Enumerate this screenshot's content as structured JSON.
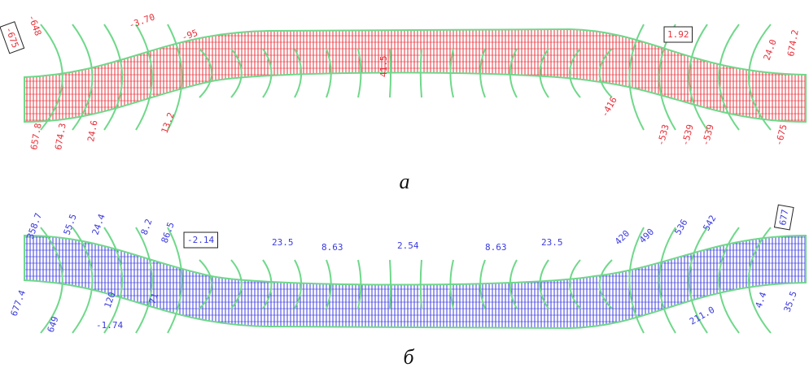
{
  "panels": [
    {
      "caption": "а",
      "labels": [
        "-675",
        "-648",
        "-3.70",
        "-95",
        "657.8",
        "674.3",
        "24.6",
        "13.2",
        "41.5",
        "-416",
        "-533",
        "-539",
        "-539",
        "-675",
        "1.92",
        "24.0",
        "674.2"
      ]
    },
    {
      "caption": "б",
      "labels": [
        "358.7",
        "55.5",
        "24.4",
        "8.2",
        "86.5",
        "-2.14",
        "23.5",
        "8.63",
        "2.54",
        "8.63",
        "23.5",
        "420",
        "490",
        "536",
        "542",
        "677",
        "677.4",
        "649",
        "120",
        "71",
        "-1.74",
        "211.0",
        "4.4",
        "35.5"
      ]
    }
  ]
}
